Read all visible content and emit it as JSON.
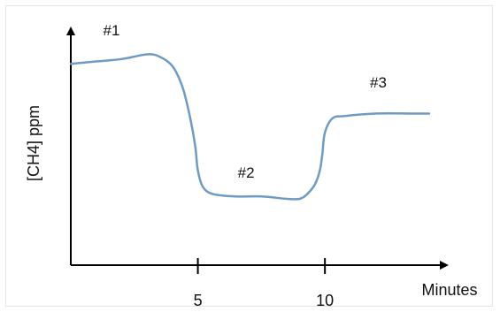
{
  "chart_data": {
    "type": "line",
    "title": "",
    "xlabel": "Minutes",
    "ylabel": "[CH4]  ppm",
    "x_ticks": [
      5,
      10
    ],
    "xlim": [
      0,
      14.8
    ],
    "ylim": [
      0,
      1
    ],
    "y_ticks": [],
    "grid": false,
    "legend": "none",
    "line_color": "#6f9bc3",
    "axis_color": "#000000",
    "series": [
      {
        "x": [
          0,
          1.0,
          2.0,
          3.0,
          3.5,
          4.0,
          4.4,
          4.7,
          4.9,
          5.0,
          5.2,
          5.6,
          6.5,
          7.5,
          8.5,
          9.0,
          9.3,
          9.6,
          9.8,
          9.9,
          10.0,
          10.3,
          10.8,
          12.0,
          13.5,
          14.1
        ],
        "y": [
          0.85,
          0.86,
          0.87,
          0.89,
          0.88,
          0.84,
          0.75,
          0.62,
          0.5,
          0.4,
          0.33,
          0.3,
          0.29,
          0.29,
          0.28,
          0.28,
          0.3,
          0.34,
          0.4,
          0.47,
          0.56,
          0.62,
          0.63,
          0.64,
          0.64,
          0.64
        ]
      }
    ],
    "annotations": [
      {
        "text": "#1",
        "x": 1.6,
        "y": 0.97
      },
      {
        "text": "#2",
        "x": 6.9,
        "y": 0.37
      },
      {
        "text": "#3",
        "x": 12.1,
        "y": 0.75
      }
    ]
  }
}
